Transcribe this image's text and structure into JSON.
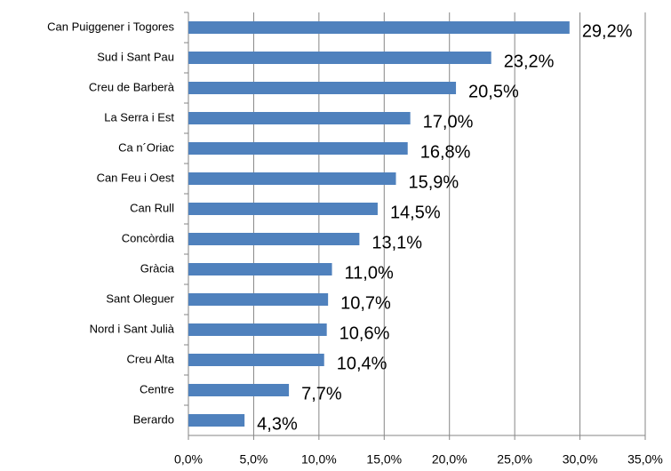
{
  "chart_data": {
    "type": "bar",
    "orientation": "horizontal",
    "categories": [
      "Can Puiggener i Togores",
      "Sud i Sant Pau",
      "Creu de Barberà",
      "La Serra i Est",
      "Ca n´Oriac",
      "Can Feu i Oest",
      "Can Rull",
      "Concòrdia",
      "Gràcia",
      "Sant Oleguer",
      "Nord i Sant Julià",
      "Creu Alta",
      "Centre",
      "Berardo"
    ],
    "values": [
      29.2,
      23.2,
      20.5,
      17.0,
      16.8,
      15.9,
      14.5,
      13.1,
      11.0,
      10.7,
      10.6,
      10.4,
      7.7,
      4.3
    ],
    "value_labels": [
      "29,2%",
      "23,2%",
      "20,5%",
      "17,0%",
      "16,8%",
      "15,9%",
      "14,5%",
      "13,1%",
      "11,0%",
      "10,7%",
      "10,6%",
      "10,4%",
      "7,7%",
      "4,3%"
    ],
    "color": "#4f81bd",
    "xlim": [
      0,
      35
    ],
    "xticks": [
      {
        "value": 0,
        "label": "0,0%"
      },
      {
        "value": 5,
        "label": "5,0%"
      },
      {
        "value": 10,
        "label": "10,0%"
      },
      {
        "value": 15,
        "label": "15,0%"
      },
      {
        "value": 20,
        "label": "20,0%"
      },
      {
        "value": 25,
        "label": "25,0%"
      },
      {
        "value": 30,
        "label": "30,0%"
      },
      {
        "value": 35,
        "label": "35,0%"
      }
    ],
    "grid": true
  }
}
